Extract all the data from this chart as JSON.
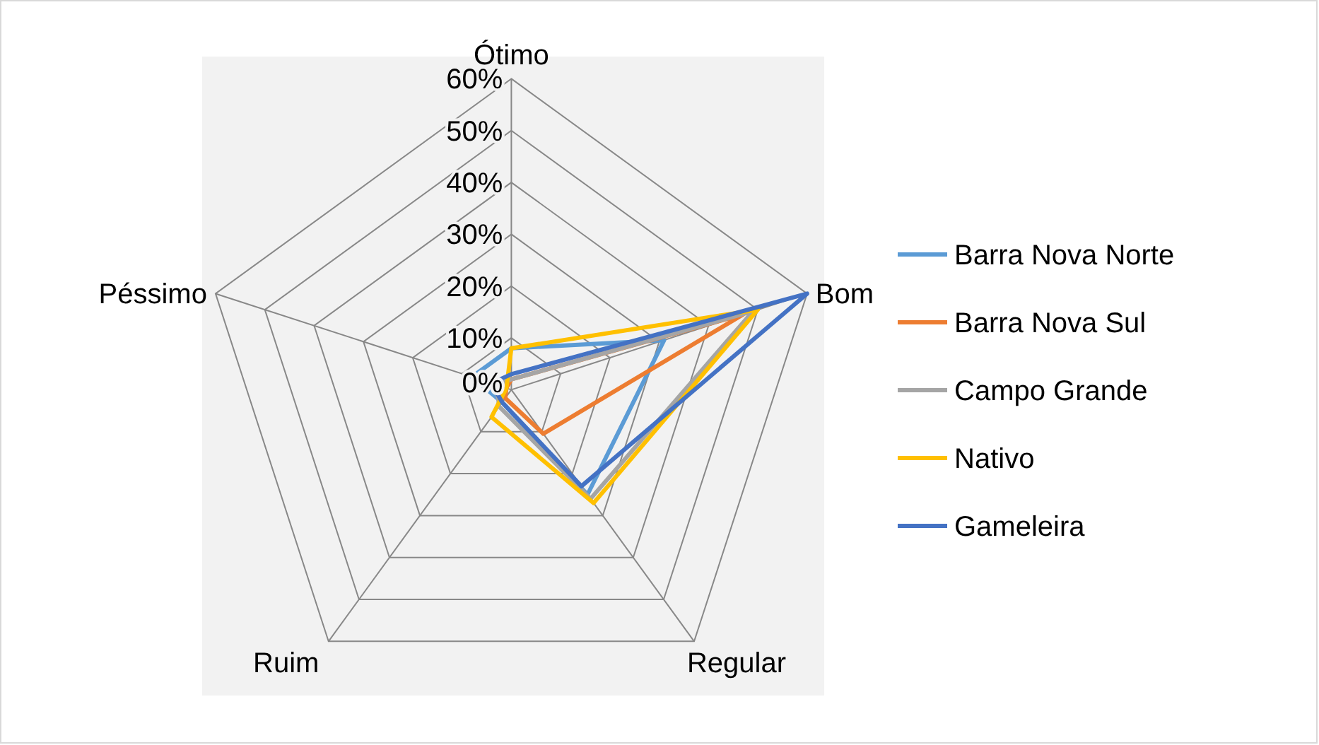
{
  "chart_data": {
    "type": "radar",
    "categories": [
      "Ótimo",
      "Bom",
      "Regular",
      "Ruim",
      "Péssimo"
    ],
    "ylim": [
      0,
      60
    ],
    "yticks": [
      {
        "value": 0,
        "label": "0%"
      },
      {
        "value": 10,
        "label": "10%"
      },
      {
        "value": 20,
        "label": "20%"
      },
      {
        "value": 30,
        "label": "30%"
      },
      {
        "value": 40,
        "label": "40%"
      },
      {
        "value": 50,
        "label": "50%"
      },
      {
        "value": 60,
        "label": "60%"
      }
    ],
    "legend": "right",
    "grid": true,
    "series": [
      {
        "name": "Barra Nova Norte",
        "color": "#5b9bd5",
        "values": [
          8,
          31,
          25,
          3,
          8
        ]
      },
      {
        "name": "Barra Nova Sul",
        "color": "#ed7d31",
        "values": [
          2,
          47,
          10.5,
          2,
          1
        ]
      },
      {
        "name": "Campo Grande",
        "color": "#a5a5a5",
        "values": [
          2,
          49,
          26,
          4,
          3
        ]
      },
      {
        "name": "Nativo",
        "color": "#ffc000",
        "values": [
          8,
          50,
          27,
          6.5,
          1
        ]
      },
      {
        "name": "Gameleira",
        "color": "#4472c4",
        "values": [
          3,
          60,
          23,
          3,
          4
        ]
      }
    ]
  }
}
